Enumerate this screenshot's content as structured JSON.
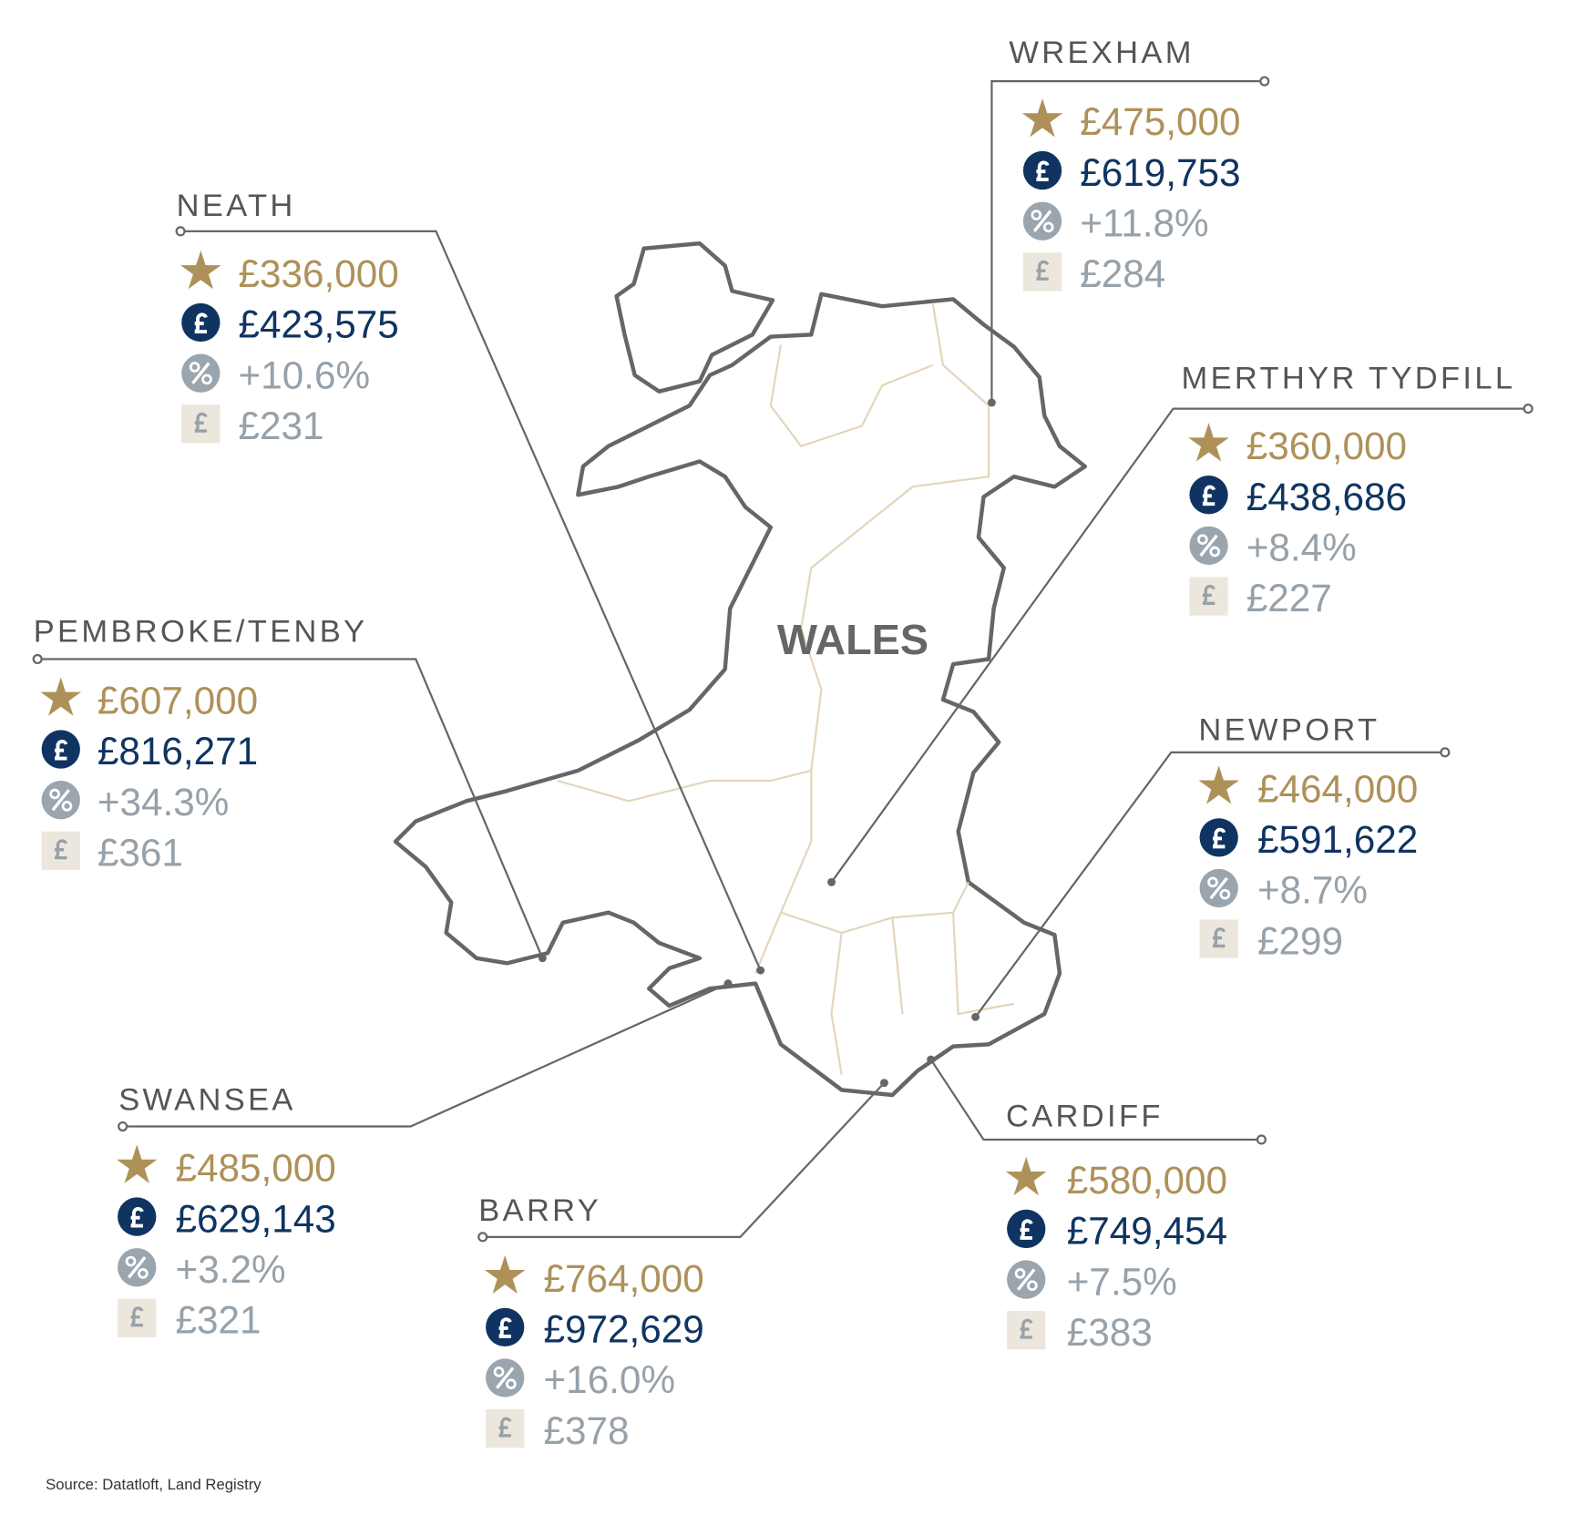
{
  "map_label": "WALES",
  "locations": [
    {
      "name": "WREXHAM",
      "stats": [
        "£475,000",
        "£619,753",
        "+11.8%",
        "£284"
      ]
    },
    {
      "name": "NEATH",
      "stats": [
        "£336,000",
        "£423,575",
        "+10.6%",
        "£231"
      ]
    },
    {
      "name": "MERTHYR TYDFILL",
      "stats": [
        "£360,000",
        "£438,686",
        "+8.4%",
        "£227"
      ]
    },
    {
      "name": "PEMBROKE/TENBY",
      "stats": [
        "£607,000",
        "£816,271",
        "+34.3%",
        "£361"
      ]
    },
    {
      "name": "NEWPORT",
      "stats": [
        "£464,000",
        "£591,622",
        "+8.7%",
        "£299"
      ]
    },
    {
      "name": "SWANSEA",
      "stats": [
        "£485,000",
        "£629,143",
        "+3.2%",
        "£321"
      ]
    },
    {
      "name": "BARRY",
      "stats": [
        "£764,000",
        "£972,629",
        "+16.0%",
        "£378"
      ]
    },
    {
      "name": "CARDIFF",
      "stats": [
        "£580,000",
        "£749,454",
        "+7.5%",
        "£383"
      ]
    }
  ],
  "source": "Source: Datatloft, Land Registry"
}
